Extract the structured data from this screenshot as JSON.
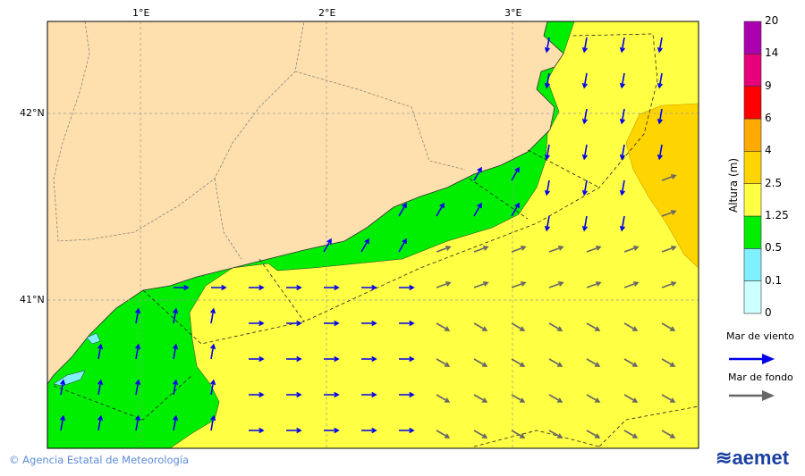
{
  "map": {
    "lon_labels": [
      "1°E",
      "2°E",
      "3°E"
    ],
    "lat_labels": [
      "42°N",
      "41°N"
    ]
  },
  "legend": {
    "title": "Altura (m)",
    "levels": [
      "0",
      "0.1",
      "0.5",
      "1.25",
      "2.5",
      "4",
      "6",
      "9",
      "14",
      "20"
    ],
    "colors": [
      "#ccffff",
      "#80f0ff",
      "#00ee00",
      "#ffff44",
      "#ffd500",
      "#ffaa00",
      "#ff0000",
      "#e8007a",
      "#aa00b0"
    ],
    "wind_sea": "Mar de viento",
    "swell": "Mar de fondo",
    "wind_sea_color": "#0000ee",
    "swell_color": "#666666"
  },
  "footer": {
    "credit": "Agencia Estatal de Meteorología",
    "logo": "aemet"
  }
}
